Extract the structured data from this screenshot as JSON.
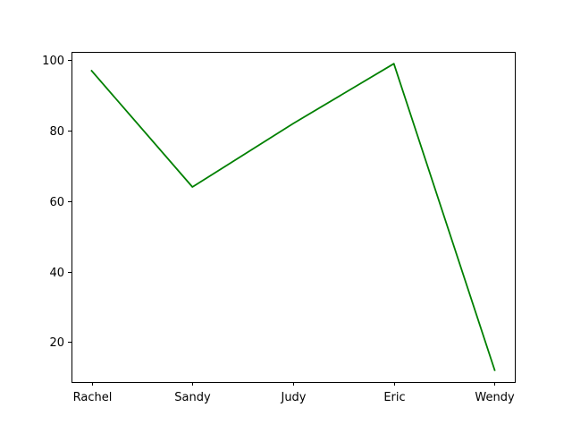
{
  "chart_data": {
    "type": "line",
    "categories": [
      "Rachel",
      "Sandy",
      "Judy",
      "Eric",
      "Wendy"
    ],
    "series": [
      {
        "values": [
          97,
          64,
          82,
          99,
          12
        ],
        "color": "#008000"
      }
    ],
    "y_ticks": [
      20,
      40,
      60,
      80,
      100
    ],
    "ylim": [
      8.65,
      102.35
    ],
    "grid": false,
    "title": "",
    "xlabel": "",
    "ylabel": ""
  }
}
